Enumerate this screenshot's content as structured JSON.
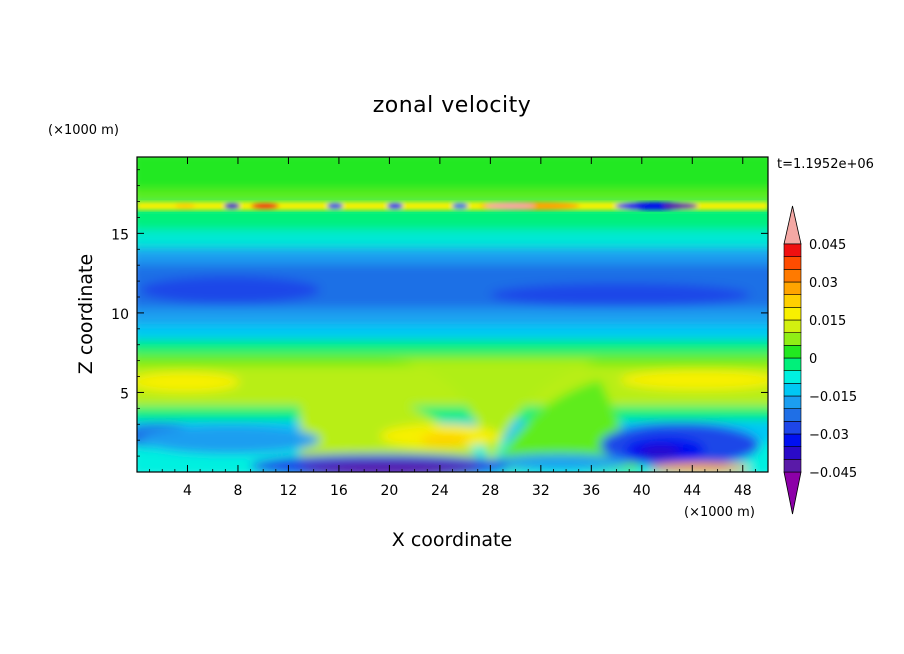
{
  "chart_data": {
    "type": "heatmap",
    "title": "zonal velocity",
    "xlabel": "X coordinate",
    "ylabel": "Z coordinate",
    "x_unit": "(×1000 m)",
    "y_unit": "(×1000 m)",
    "time_label": "t=1.1952e+06",
    "xlim": [
      0,
      50
    ],
    "ylim": [
      0,
      19.8
    ],
    "x_ticks": [
      4,
      8,
      12,
      16,
      20,
      24,
      28,
      32,
      36,
      40,
      44,
      48
    ],
    "y_ticks": [
      5,
      10,
      15
    ],
    "x_tick_labels": [
      "4",
      "8",
      "12",
      "16",
      "20",
      "24",
      "28",
      "32",
      "36",
      "40",
      "44",
      "48"
    ],
    "y_tick_labels": [
      "5",
      "10",
      "15"
    ],
    "colorbar": {
      "levels": [
        -0.05,
        -0.045,
        -0.04,
        -0.035,
        -0.03,
        -0.025,
        -0.02,
        -0.015,
        -0.01,
        -0.005,
        0,
        0.005,
        0.01,
        0.015,
        0.02,
        0.025,
        0.03,
        0.035,
        0.04,
        0.045,
        0.05
      ],
      "colors": [
        "#8c00a8",
        "#5a1aa8",
        "#2a0ac8",
        "#0010f0",
        "#1e46e8",
        "#1f6fe6",
        "#1b9ef0",
        "#00c8f4",
        "#00f0e0",
        "#00f07a",
        "#22e820",
        "#90ee16",
        "#d2f010",
        "#f8f000",
        "#ffd000",
        "#ffa400",
        "#ff7a00",
        "#ff4c00",
        "#f01010",
        "#f4a8a4"
      ],
      "tick_labels": [
        {
          "value": 0.045,
          "text": "0.045"
        },
        {
          "value": 0.03,
          "text": "0.03"
        },
        {
          "value": 0.015,
          "text": "0.015"
        },
        {
          "value": 0,
          "text": "0"
        },
        {
          "value": -0.015,
          "text": "−0.015"
        },
        {
          "value": -0.03,
          "text": "−0.03"
        },
        {
          "value": -0.045,
          "text": "−0.045"
        }
      ]
    }
  }
}
